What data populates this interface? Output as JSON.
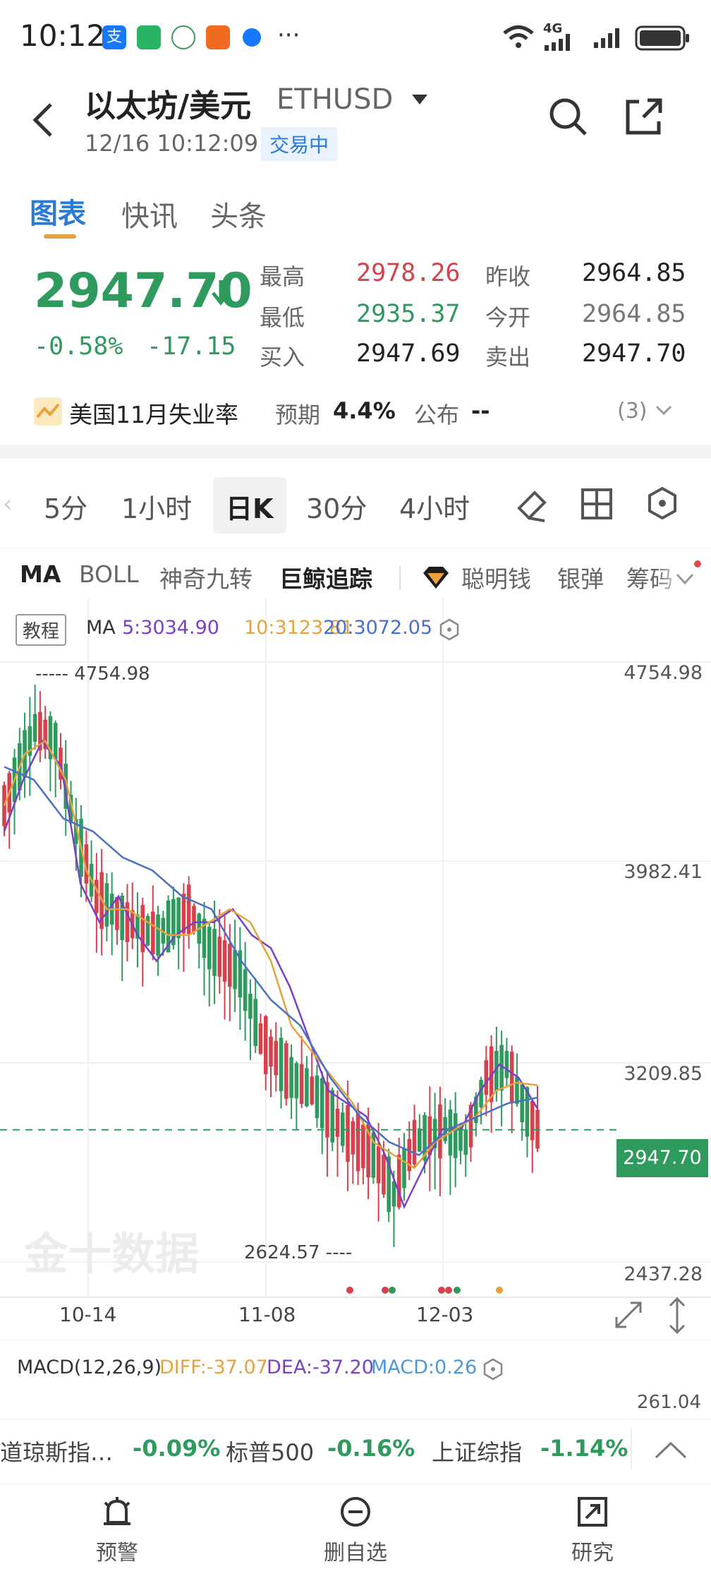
{
  "status_bar": {
    "time": "10:12",
    "dots": "···",
    "net": "4G"
  },
  "header": {
    "title": "以太坊/美元",
    "symbol": "ETHUSD",
    "datetime": "12/16 10:12:09",
    "trading_status": "交易中"
  },
  "tabs": [
    {
      "label": "图表",
      "active": true
    },
    {
      "label": "快讯",
      "active": false
    },
    {
      "label": "头条",
      "active": false
    }
  ],
  "quote": {
    "price": "2947.70",
    "change_pct": "-0.58%",
    "change": "-17.15",
    "high_label": "最高",
    "high": "2978.26",
    "low_label": "最低",
    "low": "2935.37",
    "bid_label": "买入",
    "bid": "2947.69",
    "prev_close_label": "昨收",
    "prev_close": "2964.85",
    "open_label": "今开",
    "open": "2964.85",
    "ask_label": "卖出",
    "ask": "2947.70"
  },
  "event": {
    "title": "美国11月失业率",
    "expected_label": "预期",
    "expected": "4.4%",
    "published_label": "公布",
    "published": "--",
    "count": "(3)"
  },
  "periods": [
    "5分",
    "1小时",
    "日K",
    "30分",
    "4小时"
  ],
  "active_period": "日K",
  "indicators": [
    "MA",
    "BOLL",
    "神奇九转",
    "巨鲸追踪",
    "聪明钱",
    "银弹",
    "筹码"
  ],
  "ma_legend": {
    "tutorial": "教程",
    "label": "MA",
    "ma5": "5:3034.90",
    "ma10": "10:3123.81",
    "ma20": "20:3072.05"
  },
  "chart": {
    "y_labels": [
      "4754.98",
      "3982.41",
      "3209.85",
      "2437.28"
    ],
    "high_marker": "----- 4754.98",
    "low_marker": "2624.57 ----",
    "current_price": "2947.70",
    "x_labels": [
      "10-14",
      "11-08",
      "12-03"
    ],
    "watermark": "金十数据",
    "colors": {
      "up": "#d8404c",
      "down": "#2e9a5e",
      "ma5": "#7a3fc8",
      "ma10": "#e8a23a",
      "ma20": "#4a6fc8"
    }
  },
  "chart_data": {
    "type": "candlestick",
    "series": [
      {
        "name": "MA5",
        "values": [
          4100,
          4300,
          4450,
          4350,
          3900,
          3750,
          3850,
          3700,
          3600,
          3700,
          3750,
          3750,
          3800,
          3700,
          3650,
          3500,
          3300,
          3100,
          3050,
          3000,
          2850,
          2650,
          2800,
          2950,
          2950,
          3100,
          3200,
          3150,
          3030
        ]
      },
      {
        "name": "MA10",
        "values": [
          4200,
          4400,
          4450,
          4300,
          3950,
          3800,
          3800,
          3750,
          3700,
          3700,
          3750,
          3800,
          3750,
          3600,
          3350,
          3250,
          3150,
          3050,
          2900,
          2850,
          2800,
          2900,
          2950,
          3000,
          3100,
          3130,
          3120
        ]
      },
      {
        "name": "MA20",
        "values": [
          4350,
          4300,
          4150,
          4100,
          4000,
          3950,
          3850,
          3800,
          3600,
          3450,
          3350,
          3150,
          3000,
          2900,
          2850,
          2950,
          3000,
          3050,
          3072
        ]
      }
    ],
    "ylim": [
      2437.28,
      4754.98
    ]
  },
  "macd": {
    "label": "MACD(12,26,9)",
    "diff": "DIFF:-37.07",
    "dea": "DEA:-37.20",
    "macd": "MACD:0.26",
    "top_value": "261.04"
  },
  "indices": [
    {
      "name": "道琼斯指…",
      "value": "-0.09%"
    },
    {
      "name": "标普500",
      "value": "-0.16%"
    },
    {
      "name": "上证综指",
      "value": "-1.14%"
    }
  ],
  "nav": [
    {
      "label": "预警",
      "icon": "alarm-icon"
    },
    {
      "label": "删自选",
      "icon": "minus-circle-icon"
    },
    {
      "label": "研究",
      "icon": "share-icon"
    }
  ]
}
